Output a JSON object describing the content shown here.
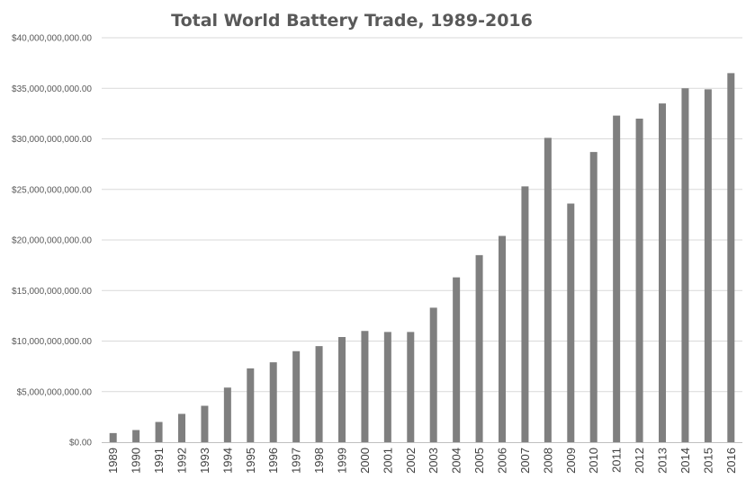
{
  "chart_data": {
    "type": "bar",
    "title": "Total World Battery Trade, 1989-2016",
    "xlabel": "",
    "ylabel": "",
    "ylim": [
      0,
      40000000000
    ],
    "grid": true,
    "legend": "none",
    "bar_color": "#7f7f7f",
    "y_ticks": [
      {
        "value": 0,
        "label": "$0.00"
      },
      {
        "value": 5000000000,
        "label": "$5,000,000,000.00"
      },
      {
        "value": 10000000000,
        "label": "$10,000,000,000.00"
      },
      {
        "value": 15000000000,
        "label": "$15,000,000,000.00"
      },
      {
        "value": 20000000000,
        "label": "$20,000,000,000.00"
      },
      {
        "value": 25000000000,
        "label": "$25,000,000,000.00"
      },
      {
        "value": 30000000000,
        "label": "$30,000,000,000.00"
      },
      {
        "value": 35000000000,
        "label": "$35,000,000,000.00"
      },
      {
        "value": 40000000000,
        "label": "$40,000,000,000.00"
      }
    ],
    "categories": [
      "1989",
      "1990",
      "1991",
      "1992",
      "1993",
      "1994",
      "1995",
      "1996",
      "1997",
      "1998",
      "1999",
      "2000",
      "2001",
      "2002",
      "2003",
      "2004",
      "2005",
      "2006",
      "2007",
      "2008",
      "2009",
      "2010",
      "2011",
      "2012",
      "2013",
      "2014",
      "2015",
      "2016"
    ],
    "values": [
      900000000,
      1200000000,
      2000000000,
      2800000000,
      3600000000,
      5400000000,
      7300000000,
      7900000000,
      9000000000,
      9500000000,
      10400000000,
      11000000000,
      10900000000,
      10900000000,
      13300000000,
      16300000000,
      18500000000,
      20400000000,
      25300000000,
      30100000000,
      23600000000,
      28700000000,
      32300000000,
      32000000000,
      33500000000,
      35000000000,
      34900000000,
      36500000000
    ]
  }
}
